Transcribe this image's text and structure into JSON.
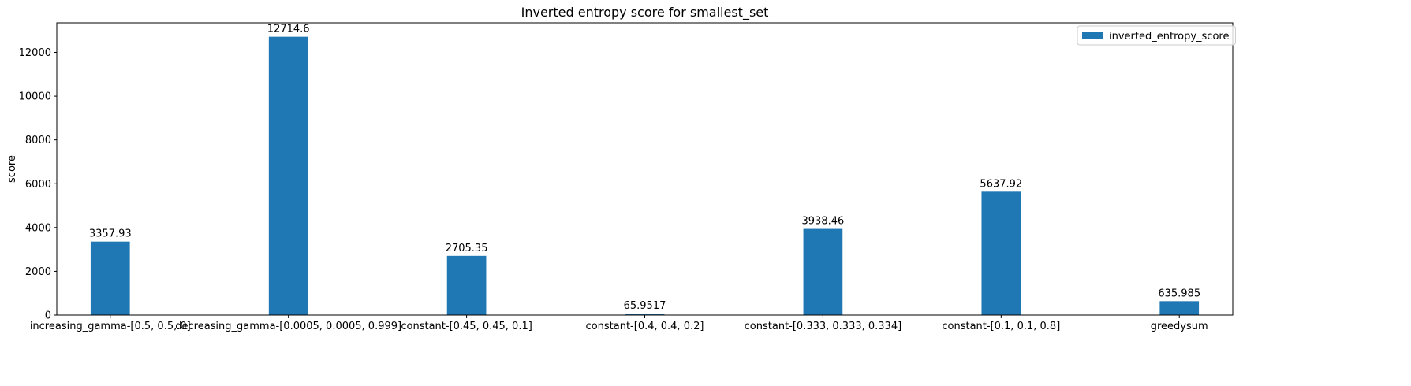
{
  "chart_data": {
    "type": "bar",
    "title": "Inverted entropy score for smallest_set",
    "xlabel": "",
    "ylabel": "score",
    "categories": [
      "increasing_gamma-[0.5, 0.5, 0]",
      "decreasing_gamma-[0.0005, 0.0005, 0.999]",
      "constant-[0.45, 0.45, 0.1]",
      "constant-[0.4, 0.4, 0.2]",
      "constant-[0.333, 0.333, 0.334]",
      "constant-[0.1, 0.1, 0.8]",
      "greedysum"
    ],
    "series": [
      {
        "name": "inverted_entropy_score",
        "values": [
          3357.93,
          12714.6,
          2705.35,
          65.9517,
          3938.46,
          5637.92,
          635.985
        ],
        "labels": [
          "3357.93",
          "12714.6",
          "2705.35",
          "65.9517",
          "3938.46",
          "5637.92",
          "635.985"
        ]
      }
    ],
    "ylim": [
      0,
      13350
    ],
    "yticks": [
      0,
      2000,
      4000,
      6000,
      8000,
      10000,
      12000
    ],
    "grid": false,
    "legend_position": "top-right",
    "bar_color": "#1f77b4"
  }
}
